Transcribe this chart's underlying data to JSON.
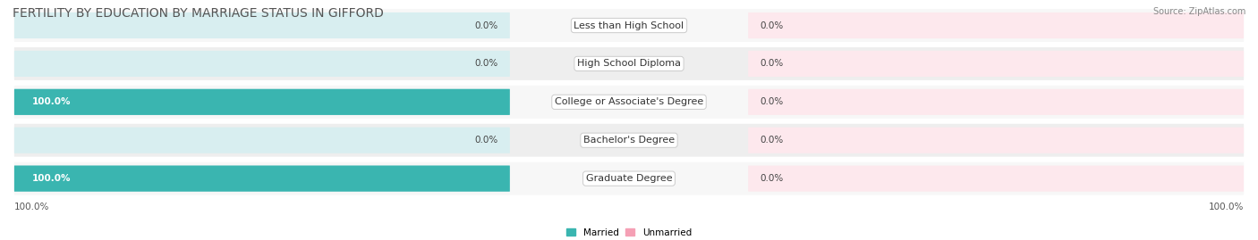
{
  "title": "FERTILITY BY EDUCATION BY MARRIAGE STATUS IN GIFFORD",
  "source": "Source: ZipAtlas.com",
  "categories": [
    "Less than High School",
    "High School Diploma",
    "College or Associate's Degree",
    "Bachelor's Degree",
    "Graduate Degree"
  ],
  "married_values": [
    0.0,
    0.0,
    100.0,
    0.0,
    100.0
  ],
  "unmarried_values": [
    0.0,
    0.0,
    0.0,
    0.0,
    0.0
  ],
  "married_color": "#3ab5b0",
  "unmarried_color": "#f5a0b5",
  "bar_bg_left_color": "#d8eef0",
  "bar_bg_right_color": "#fde8ed",
  "row_bg_colors": [
    "#f7f7f7",
    "#eeeeee"
  ],
  "label_bg_color": "#ffffff",
  "axis_label_left": "100.0%",
  "axis_label_right": "100.0%",
  "title_fontsize": 10,
  "label_fontsize": 8,
  "tick_fontsize": 7.5,
  "figsize": [
    14.06,
    2.69
  ],
  "dpi": 100
}
